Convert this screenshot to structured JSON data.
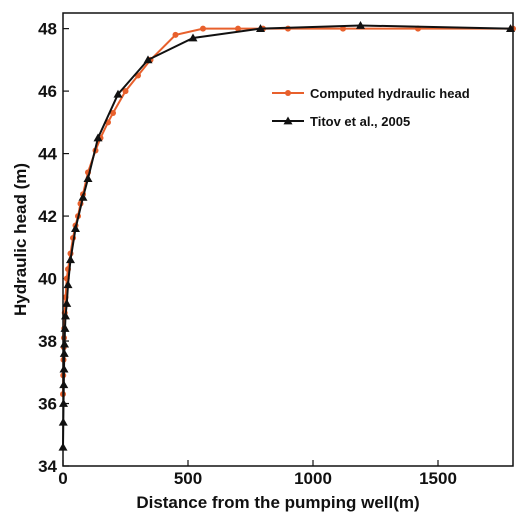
{
  "chart_data": {
    "type": "line",
    "title": "",
    "xlabel": "Distance from the pumping well(m)",
    "ylabel": "Hydraulic head (m)",
    "xlim": [
      0,
      1800
    ],
    "ylim": [
      34,
      48.5
    ],
    "x_ticks": [
      "0",
      "500",
      "1000",
      "1500"
    ],
    "y_ticks": [
      "34",
      "36",
      "38",
      "40",
      "42",
      "44",
      "46",
      "48"
    ],
    "grid": false,
    "legend_position": "top-right",
    "series": [
      {
        "name": "Computed hydraulic head",
        "color": "#e8602c",
        "marker": "circle",
        "x": [
          0,
          1,
          2,
          3,
          4,
          5,
          7,
          10,
          15,
          20,
          30,
          40,
          50,
          60,
          70,
          80,
          100,
          130,
          150,
          180,
          200,
          250,
          300,
          350,
          450,
          560,
          700,
          800,
          900,
          1120,
          1420,
          1800
        ],
        "y": [
          36.3,
          36.9,
          37.4,
          37.8,
          38.1,
          38.4,
          38.9,
          39.4,
          40.0,
          40.3,
          40.8,
          41.3,
          41.7,
          42.0,
          42.4,
          42.7,
          43.4,
          44.1,
          44.5,
          45.0,
          45.3,
          46.0,
          46.5,
          47.0,
          47.8,
          48.0,
          48.0,
          48.0,
          48.0,
          48.0,
          48.0,
          48.0
        ]
      },
      {
        "name": "Titov et al., 2005",
        "color": "#111111",
        "marker": "triangle",
        "x": [
          0,
          1,
          2,
          3,
          4,
          5,
          6,
          8,
          10,
          15,
          20,
          30,
          50,
          80,
          100,
          140,
          220,
          340,
          520,
          790,
          1190,
          1790
        ],
        "y": [
          34.6,
          35.4,
          36.0,
          36.6,
          37.1,
          37.6,
          37.9,
          38.4,
          38.8,
          39.2,
          39.8,
          40.6,
          41.6,
          42.6,
          43.2,
          44.5,
          45.9,
          47.0,
          47.7,
          48.0,
          48.1,
          48.0
        ]
      }
    ]
  }
}
